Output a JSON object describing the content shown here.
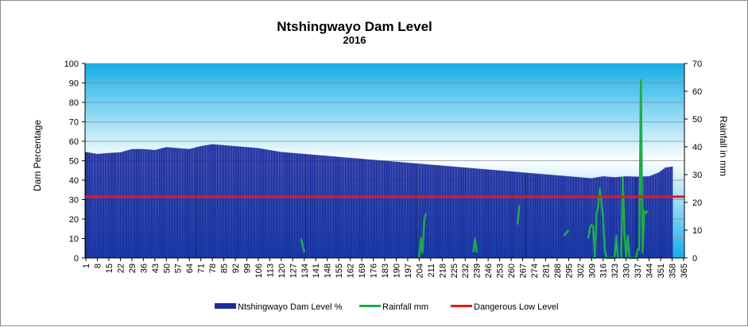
{
  "chart_data": {
    "type": "bar",
    "title": "Ntshingwayo Dam Level",
    "subtitle": "2016",
    "ylabel": "Dam Percentage",
    "y2label": "Rainfall in mm",
    "ylim": [
      0,
      100
    ],
    "y2lim": [
      0,
      70
    ],
    "yticks": [
      "0",
      "10",
      "20",
      "30",
      "40",
      "50",
      "60",
      "70",
      "80",
      "90",
      "100"
    ],
    "y2ticks": [
      "0",
      "10",
      "20",
      "30",
      "40",
      "50",
      "60",
      "70"
    ],
    "xlim": [
      1,
      365
    ],
    "xticks": [
      "1",
      "8",
      "15",
      "22",
      "29",
      "36",
      "43",
      "50",
      "57",
      "64",
      "71",
      "78",
      "85",
      "92",
      "99",
      "106",
      "113",
      "120",
      "127",
      "134",
      "141",
      "148",
      "155",
      "162",
      "169",
      "176",
      "183",
      "190",
      "197",
      "204",
      "211",
      "218",
      "225",
      "232",
      "239",
      "246",
      "253",
      "260",
      "267",
      "274",
      "281",
      "288",
      "295",
      "302",
      "309",
      "316",
      "323",
      "330",
      "337",
      "344",
      "351",
      "358",
      "365"
    ],
    "grid": true,
    "legend_position": "bottom",
    "colors": {
      "dam": "#1a2a9e",
      "rain": "#1faa4a",
      "low": "#e41a1a",
      "bg_top": "#15aee6",
      "bg_mid": "#ffffff"
    },
    "series": [
      {
        "name": "Ntshingwayo Dam Level %",
        "kind": "bar",
        "days": [
          1,
          8,
          15,
          22,
          29,
          36,
          43,
          50,
          57,
          64,
          71,
          78,
          85,
          92,
          99,
          106,
          113,
          120,
          127,
          134,
          141,
          148,
          155,
          162,
          169,
          176,
          183,
          190,
          197,
          204,
          211,
          218,
          225,
          232,
          239,
          246,
          253,
          260,
          267,
          274,
          281,
          288,
          295,
          302,
          309,
          316,
          323,
          330,
          337,
          344,
          350,
          354,
          358
        ],
        "values": [
          54.5,
          53.5,
          54,
          54.3,
          56,
          56,
          55.5,
          57,
          56.5,
          56,
          57.5,
          58.5,
          58,
          57.5,
          57,
          56.5,
          55.5,
          54.5,
          54,
          53.5,
          53,
          52.5,
          52,
          51.5,
          51,
          50.5,
          50,
          49.5,
          49,
          48.5,
          48,
          47.5,
          47,
          46.5,
          46,
          45.5,
          45,
          44.5,
          44,
          43.5,
          43,
          42.5,
          42,
          41.5,
          41,
          42,
          41.5,
          42,
          41.8,
          42,
          44,
          46.5,
          47
        ]
      },
      {
        "name": "Rainfall  mm",
        "kind": "line",
        "segments": [
          {
            "x": [
              132,
              134
            ],
            "y": [
              7,
              2
            ]
          },
          {
            "x": [
              204,
              205,
              206,
              207,
              208
            ],
            "y": [
              0,
              7,
              2,
              13,
              16
            ]
          },
          {
            "x": [
              237,
              238,
              239
            ],
            "y": [
              2,
              7,
              2
            ]
          },
          {
            "x": [
              264,
              265
            ],
            "y": [
              12,
              19
            ]
          },
          {
            "x": [
              292,
              295
            ],
            "y": [
              8,
              10
            ]
          },
          {
            "x": [
              307,
              308,
              309,
              310,
              311,
              312,
              313,
              314,
              315,
              316,
              317,
              318,
              319,
              320,
              321,
              322,
              323,
              324,
              325
            ],
            "y": [
              7,
              11,
              12,
              11,
              0,
              16,
              18,
              25,
              20,
              14,
              3,
              0,
              0,
              0,
              0,
              0,
              0,
              8,
              0
            ]
          },
          {
            "x": [
              327,
              328,
              329,
              330,
              331,
              332,
              333,
              334,
              335,
              336,
              337,
              338,
              339,
              340,
              341,
              342,
              343
            ],
            "y": [
              0,
              29,
              9,
              0,
              8,
              0,
              0,
              0,
              0,
              0,
              3,
              3,
              64,
              2,
              17,
              16,
              17
            ]
          }
        ]
      },
      {
        "name": "Dangerous Low Level",
        "kind": "hline",
        "value": 31.5
      }
    ]
  }
}
